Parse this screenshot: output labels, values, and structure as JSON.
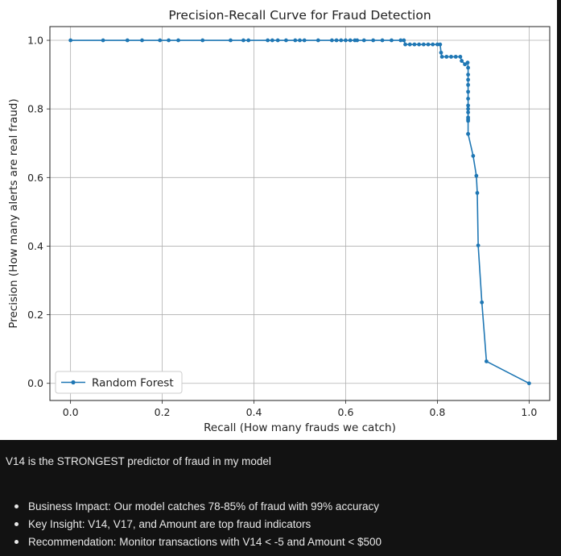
{
  "chart_data": {
    "type": "line",
    "title": "Precision-Recall Curve for Fraud Detection",
    "xlabel": "Recall (How many frauds we catch)",
    "ylabel": "Precision (How many alerts are real fraud)",
    "xlim": [
      -0.045,
      1.045
    ],
    "ylim": [
      -0.05,
      1.04
    ],
    "xticks": [
      "0.0",
      "0.2",
      "0.4",
      "0.6",
      "0.8",
      "1.0"
    ],
    "yticks": [
      "0.0",
      "0.2",
      "0.4",
      "0.6",
      "0.8",
      "1.0"
    ],
    "grid": true,
    "legend_position": "lower-left",
    "series": [
      {
        "name": "Random Forest",
        "color": "#1f77b4",
        "marker": "circle",
        "x": [
          0.0,
          0.071,
          0.124,
          0.156,
          0.195,
          0.214,
          0.235,
          0.288,
          0.349,
          0.377,
          0.388,
          0.43,
          0.44,
          0.452,
          0.47,
          0.49,
          0.5,
          0.51,
          0.54,
          0.57,
          0.58,
          0.59,
          0.6,
          0.61,
          0.62,
          0.625,
          0.64,
          0.66,
          0.68,
          0.7,
          0.72,
          0.727,
          0.73,
          0.74,
          0.75,
          0.76,
          0.77,
          0.78,
          0.79,
          0.8,
          0.806,
          0.808,
          0.81,
          0.82,
          0.83,
          0.84,
          0.85,
          0.853,
          0.86,
          0.866,
          0.867,
          0.867,
          0.867,
          0.867,
          0.867,
          0.867,
          0.867,
          0.867,
          0.867,
          0.867,
          0.867,
          0.867,
          0.867,
          0.867,
          0.878,
          0.885,
          0.887,
          0.889,
          0.897,
          0.907,
          1.0
        ],
        "y": [
          1.0,
          1.0,
          1.0,
          1.0,
          1.0,
          1.0,
          1.0,
          1.0,
          1.0,
          1.0,
          1.0,
          1.0,
          1.0,
          1.0,
          1.0,
          1.0,
          1.0,
          1.0,
          1.0,
          1.0,
          1.0,
          1.0,
          1.0,
          1.0,
          1.0,
          1.0,
          1.0,
          1.0,
          1.0,
          1.0,
          1.0,
          1.0,
          0.988,
          0.988,
          0.988,
          0.988,
          0.988,
          0.988,
          0.988,
          0.988,
          0.988,
          0.964,
          0.952,
          0.952,
          0.952,
          0.952,
          0.952,
          0.94,
          0.93,
          0.935,
          0.92,
          0.9,
          0.885,
          0.87,
          0.85,
          0.83,
          0.81,
          0.79,
          0.775,
          0.765,
          0.77,
          0.8,
          0.727,
          0.727,
          0.663,
          0.605,
          0.555,
          0.402,
          0.236,
          0.064,
          0.0
        ]
      }
    ]
  },
  "notes": {
    "summary": "V14 is the STRONGEST predictor of fraud in my model",
    "bullets": [
      "Business Impact: Our model catches 78-85% of fraud with 99% accuracy",
      "Key Insight: V14, V17, and Amount are top fraud indicators",
      "Recommendation: Monitor transactions with V14 < -5 and Amount < $500"
    ]
  }
}
